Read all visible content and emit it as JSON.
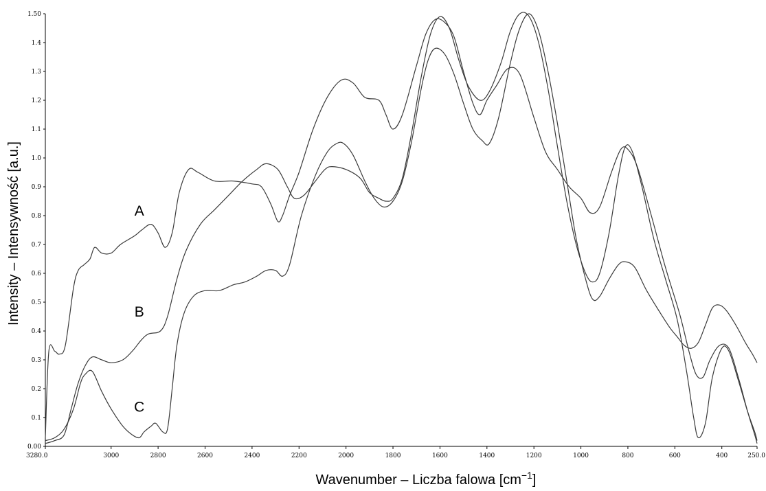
{
  "chart_data": {
    "type": "line",
    "xlabel": "Wavenumber – Liczba falowa [cm",
    "xlabel_sup": "−1",
    "xlabel_end": "]",
    "ylabel": "Intensity – Intensywność [a.u.]",
    "xlim": [
      3280,
      250
    ],
    "ylim": [
      0,
      1.5
    ],
    "x_reversed": true,
    "grid": false,
    "x_ticks": [
      {
        "value": 3280,
        "label": "3280.0"
      },
      {
        "value": 3000,
        "label": "3000"
      },
      {
        "value": 2800,
        "label": "2800"
      },
      {
        "value": 2600,
        "label": "2600"
      },
      {
        "value": 2400,
        "label": "2400"
      },
      {
        "value": 2200,
        "label": "2200"
      },
      {
        "value": 2000,
        "label": "2000"
      },
      {
        "value": 1800,
        "label": "1800"
      },
      {
        "value": 1600,
        "label": "1600"
      },
      {
        "value": 1400,
        "label": "1400"
      },
      {
        "value": 1200,
        "label": "1200"
      },
      {
        "value": 1000,
        "label": "1000"
      },
      {
        "value": 800,
        "label": "800"
      },
      {
        "value": 600,
        "label": "600"
      },
      {
        "value": 400,
        "label": "400"
      },
      {
        "value": 250,
        "label": "250.0"
      }
    ],
    "y_ticks": [
      {
        "value": 0.0,
        "label": "0.00"
      },
      {
        "value": 0.1,
        "label": "0.1"
      },
      {
        "value": 0.2,
        "label": "0.2"
      },
      {
        "value": 0.3,
        "label": "0.3"
      },
      {
        "value": 0.4,
        "label": "0.4"
      },
      {
        "value": 0.5,
        "label": "0.5"
      },
      {
        "value": 0.6,
        "label": "0.6"
      },
      {
        "value": 0.7,
        "label": "0.7"
      },
      {
        "value": 0.8,
        "label": "0.8"
      },
      {
        "value": 0.9,
        "label": "0.9"
      },
      {
        "value": 1.0,
        "label": "1.0"
      },
      {
        "value": 1.1,
        "label": "1.1"
      },
      {
        "value": 1.2,
        "label": "1.2"
      },
      {
        "value": 1.3,
        "label": "1.3"
      },
      {
        "value": 1.4,
        "label": "1.4"
      },
      {
        "value": 1.5,
        "label": "1.50"
      }
    ],
    "series": [
      {
        "name": "A",
        "label_at": {
          "x": 2880,
          "y": 0.8
        },
        "points": [
          [
            3280,
            0.03
          ],
          [
            3265,
            0.33
          ],
          [
            3240,
            0.33
          ],
          [
            3220,
            0.32
          ],
          [
            3195,
            0.35
          ],
          [
            3160,
            0.55
          ],
          [
            3140,
            0.61
          ],
          [
            3115,
            0.63
          ],
          [
            3090,
            0.65
          ],
          [
            3070,
            0.69
          ],
          [
            3040,
            0.67
          ],
          [
            3000,
            0.67
          ],
          [
            2960,
            0.7
          ],
          [
            2900,
            0.73
          ],
          [
            2870,
            0.75
          ],
          [
            2830,
            0.77
          ],
          [
            2800,
            0.74
          ],
          [
            2770,
            0.69
          ],
          [
            2740,
            0.74
          ],
          [
            2710,
            0.88
          ],
          [
            2670,
            0.96
          ],
          [
            2630,
            0.95
          ],
          [
            2560,
            0.92
          ],
          [
            2480,
            0.92
          ],
          [
            2400,
            0.91
          ],
          [
            2360,
            0.9
          ],
          [
            2320,
            0.84
          ],
          [
            2290,
            0.78
          ],
          [
            2270,
            0.8
          ],
          [
            2240,
            0.87
          ],
          [
            2200,
            0.95
          ],
          [
            2140,
            1.1
          ],
          [
            2080,
            1.21
          ],
          [
            2020,
            1.27
          ],
          [
            1970,
            1.26
          ],
          [
            1920,
            1.21
          ],
          [
            1860,
            1.2
          ],
          [
            1830,
            1.15
          ],
          [
            1800,
            1.1
          ],
          [
            1760,
            1.15
          ],
          [
            1700,
            1.32
          ],
          [
            1660,
            1.43
          ],
          [
            1620,
            1.48
          ],
          [
            1580,
            1.47
          ],
          [
            1540,
            1.42
          ],
          [
            1500,
            1.3
          ],
          [
            1460,
            1.19
          ],
          [
            1430,
            1.15
          ],
          [
            1400,
            1.2
          ],
          [
            1360,
            1.25
          ],
          [
            1310,
            1.31
          ],
          [
            1260,
            1.29
          ],
          [
            1200,
            1.14
          ],
          [
            1150,
            1.02
          ],
          [
            1100,
            0.96
          ],
          [
            1050,
            0.9
          ],
          [
            1000,
            0.86
          ],
          [
            960,
            0.81
          ],
          [
            920,
            0.83
          ],
          [
            870,
            0.95
          ],
          [
            830,
            1.03
          ],
          [
            800,
            1.03
          ],
          [
            760,
            0.97
          ],
          [
            700,
            0.8
          ],
          [
            640,
            0.62
          ],
          [
            580,
            0.46
          ],
          [
            540,
            0.33
          ],
          [
            510,
            0.25
          ],
          [
            480,
            0.24
          ],
          [
            450,
            0.3
          ],
          [
            410,
            0.35
          ],
          [
            370,
            0.34
          ],
          [
            330,
            0.24
          ],
          [
            290,
            0.12
          ],
          [
            260,
            0.04
          ],
          [
            250,
            0.01
          ]
        ]
      },
      {
        "name": "B",
        "label_at": {
          "x": 2880,
          "y": 0.45
        },
        "points": [
          [
            3280,
            0.01
          ],
          [
            3240,
            0.02
          ],
          [
            3200,
            0.04
          ],
          [
            3170,
            0.13
          ],
          [
            3140,
            0.22
          ],
          [
            3110,
            0.28
          ],
          [
            3080,
            0.31
          ],
          [
            3040,
            0.3
          ],
          [
            3000,
            0.29
          ],
          [
            2950,
            0.3
          ],
          [
            2910,
            0.33
          ],
          [
            2870,
            0.37
          ],
          [
            2840,
            0.39
          ],
          [
            2790,
            0.4
          ],
          [
            2760,
            0.45
          ],
          [
            2720,
            0.58
          ],
          [
            2680,
            0.68
          ],
          [
            2620,
            0.77
          ],
          [
            2560,
            0.82
          ],
          [
            2500,
            0.87
          ],
          [
            2440,
            0.92
          ],
          [
            2380,
            0.96
          ],
          [
            2340,
            0.98
          ],
          [
            2290,
            0.96
          ],
          [
            2250,
            0.9
          ],
          [
            2220,
            0.86
          ],
          [
            2180,
            0.87
          ],
          [
            2130,
            0.92
          ],
          [
            2090,
            0.96
          ],
          [
            2060,
            0.97
          ],
          [
            2000,
            0.96
          ],
          [
            1940,
            0.93
          ],
          [
            1900,
            0.88
          ],
          [
            1860,
            0.86
          ],
          [
            1830,
            0.85
          ],
          [
            1800,
            0.86
          ],
          [
            1760,
            0.93
          ],
          [
            1720,
            1.09
          ],
          [
            1680,
            1.28
          ],
          [
            1640,
            1.43
          ],
          [
            1600,
            1.49
          ],
          [
            1560,
            1.45
          ],
          [
            1520,
            1.34
          ],
          [
            1480,
            1.25
          ],
          [
            1430,
            1.2
          ],
          [
            1390,
            1.23
          ],
          [
            1340,
            1.33
          ],
          [
            1300,
            1.44
          ],
          [
            1260,
            1.5
          ],
          [
            1220,
            1.49
          ],
          [
            1180,
            1.4
          ],
          [
            1140,
            1.24
          ],
          [
            1100,
            1.04
          ],
          [
            1060,
            0.85
          ],
          [
            1020,
            0.7
          ],
          [
            980,
            0.6
          ],
          [
            950,
            0.57
          ],
          [
            920,
            0.6
          ],
          [
            880,
            0.74
          ],
          [
            840,
            0.94
          ],
          [
            810,
            1.04
          ],
          [
            780,
            1.02
          ],
          [
            740,
            0.9
          ],
          [
            690,
            0.72
          ],
          [
            640,
            0.58
          ],
          [
            590,
            0.44
          ],
          [
            550,
            0.26
          ],
          [
            520,
            0.1
          ],
          [
            500,
            0.03
          ],
          [
            470,
            0.08
          ],
          [
            440,
            0.24
          ],
          [
            400,
            0.34
          ],
          [
            370,
            0.33
          ],
          [
            330,
            0.23
          ],
          [
            290,
            0.12
          ],
          [
            260,
            0.05
          ],
          [
            250,
            0.02
          ]
        ]
      },
      {
        "name": "C",
        "label_at": {
          "x": 2880,
          "y": 0.12
        },
        "points": [
          [
            3280,
            0.02
          ],
          [
            3240,
            0.03
          ],
          [
            3200,
            0.06
          ],
          [
            3160,
            0.13
          ],
          [
            3130,
            0.22
          ],
          [
            3110,
            0.25
          ],
          [
            3080,
            0.26
          ],
          [
            3040,
            0.19
          ],
          [
            3000,
            0.13
          ],
          [
            2950,
            0.07
          ],
          [
            2910,
            0.04
          ],
          [
            2880,
            0.03
          ],
          [
            2860,
            0.05
          ],
          [
            2830,
            0.07
          ],
          [
            2810,
            0.08
          ],
          [
            2780,
            0.05
          ],
          [
            2760,
            0.06
          ],
          [
            2740,
            0.2
          ],
          [
            2720,
            0.35
          ],
          [
            2690,
            0.46
          ],
          [
            2650,
            0.52
          ],
          [
            2600,
            0.54
          ],
          [
            2540,
            0.54
          ],
          [
            2480,
            0.56
          ],
          [
            2430,
            0.57
          ],
          [
            2380,
            0.59
          ],
          [
            2340,
            0.61
          ],
          [
            2300,
            0.61
          ],
          [
            2270,
            0.59
          ],
          [
            2240,
            0.63
          ],
          [
            2190,
            0.8
          ],
          [
            2130,
            0.94
          ],
          [
            2080,
            1.02
          ],
          [
            2040,
            1.05
          ],
          [
            2010,
            1.05
          ],
          [
            1970,
            1.01
          ],
          [
            1920,
            0.92
          ],
          [
            1880,
            0.86
          ],
          [
            1840,
            0.83
          ],
          [
            1800,
            0.85
          ],
          [
            1760,
            0.92
          ],
          [
            1720,
            1.06
          ],
          [
            1680,
            1.24
          ],
          [
            1650,
            1.34
          ],
          [
            1620,
            1.38
          ],
          [
            1580,
            1.36
          ],
          [
            1540,
            1.29
          ],
          [
            1500,
            1.19
          ],
          [
            1460,
            1.1
          ],
          [
            1420,
            1.06
          ],
          [
            1390,
            1.05
          ],
          [
            1350,
            1.14
          ],
          [
            1300,
            1.33
          ],
          [
            1260,
            1.45
          ],
          [
            1220,
            1.5
          ],
          [
            1180,
            1.44
          ],
          [
            1140,
            1.3
          ],
          [
            1100,
            1.12
          ],
          [
            1060,
            0.92
          ],
          [
            1020,
            0.72
          ],
          [
            980,
            0.58
          ],
          [
            950,
            0.51
          ],
          [
            920,
            0.52
          ],
          [
            880,
            0.58
          ],
          [
            840,
            0.63
          ],
          [
            810,
            0.64
          ],
          [
            770,
            0.62
          ],
          [
            720,
            0.54
          ],
          [
            660,
            0.46
          ],
          [
            620,
            0.41
          ],
          [
            590,
            0.38
          ],
          [
            560,
            0.35
          ],
          [
            530,
            0.34
          ],
          [
            500,
            0.36
          ],
          [
            470,
            0.42
          ],
          [
            440,
            0.48
          ],
          [
            410,
            0.49
          ],
          [
            380,
            0.47
          ],
          [
            340,
            0.42
          ],
          [
            300,
            0.36
          ],
          [
            270,
            0.32
          ],
          [
            250,
            0.29
          ]
        ]
      }
    ]
  }
}
